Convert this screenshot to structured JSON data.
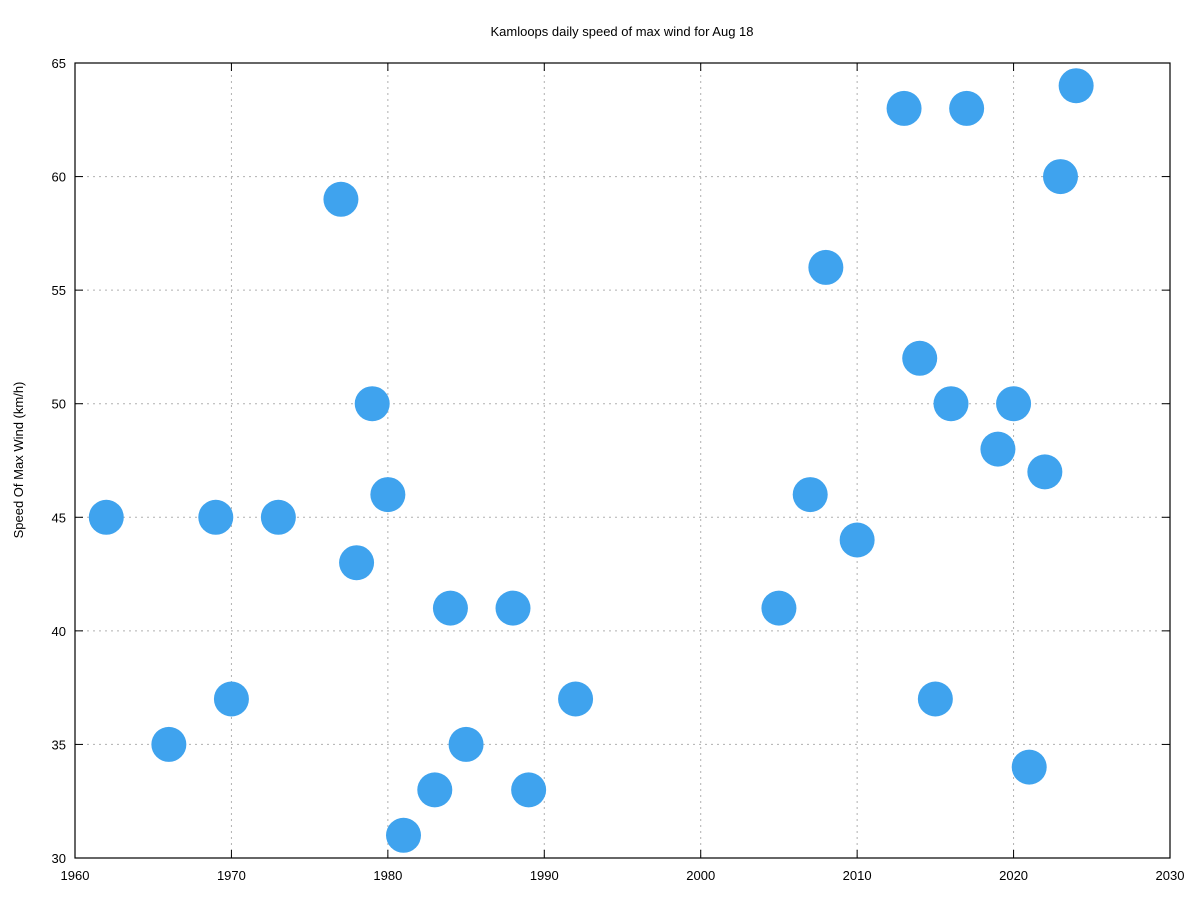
{
  "chart_data": {
    "type": "scatter",
    "title": "Kamloops daily speed of max wind for Aug 18",
    "xlabel": "",
    "ylabel": "Speed Of Max Wind (km/h)",
    "xlim": [
      1960,
      2030
    ],
    "ylim": [
      30,
      65
    ],
    "xticks": [
      1960,
      1970,
      1980,
      1990,
      2000,
      2010,
      2020,
      2030
    ],
    "yticks": [
      30,
      35,
      40,
      45,
      50,
      55,
      60,
      65
    ],
    "grid": true,
    "marker_color": "#3fa3ee",
    "points": [
      {
        "x": 1962,
        "y": 45
      },
      {
        "x": 1966,
        "y": 35
      },
      {
        "x": 1969,
        "y": 45
      },
      {
        "x": 1970,
        "y": 37
      },
      {
        "x": 1973,
        "y": 45
      },
      {
        "x": 1977,
        "y": 59
      },
      {
        "x": 1978,
        "y": 43
      },
      {
        "x": 1979,
        "y": 50
      },
      {
        "x": 1980,
        "y": 46
      },
      {
        "x": 1981,
        "y": 31
      },
      {
        "x": 1983,
        "y": 33
      },
      {
        "x": 1984,
        "y": 41
      },
      {
        "x": 1985,
        "y": 35
      },
      {
        "x": 1988,
        "y": 41
      },
      {
        "x": 1989,
        "y": 33
      },
      {
        "x": 1992,
        "y": 37
      },
      {
        "x": 2005,
        "y": 41
      },
      {
        "x": 2007,
        "y": 46
      },
      {
        "x": 2008,
        "y": 56
      },
      {
        "x": 2010,
        "y": 44
      },
      {
        "x": 2013,
        "y": 63
      },
      {
        "x": 2014,
        "y": 52
      },
      {
        "x": 2015,
        "y": 37
      },
      {
        "x": 2016,
        "y": 50
      },
      {
        "x": 2017,
        "y": 63
      },
      {
        "x": 2019,
        "y": 48
      },
      {
        "x": 2020,
        "y": 50
      },
      {
        "x": 2021,
        "y": 34
      },
      {
        "x": 2022,
        "y": 47
      },
      {
        "x": 2023,
        "y": 60
      },
      {
        "x": 2024,
        "y": 64
      }
    ]
  }
}
